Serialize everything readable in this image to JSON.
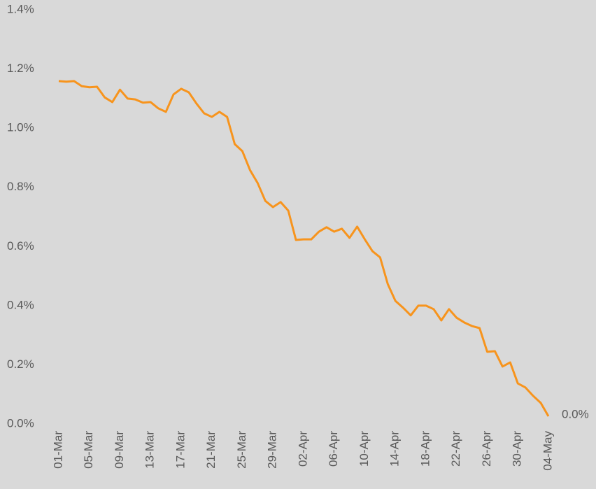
{
  "chart_data": {
    "type": "line",
    "categories": [
      "01-Mar",
      null,
      null,
      null,
      "05-Mar",
      null,
      null,
      null,
      "09-Mar",
      null,
      null,
      null,
      "13-Mar",
      null,
      null,
      null,
      "17-Mar",
      null,
      null,
      null,
      "21-Mar",
      null,
      null,
      null,
      "25-Mar",
      null,
      null,
      null,
      "29-Mar",
      null,
      null,
      null,
      "02-Apr",
      null,
      null,
      null,
      "06-Apr",
      null,
      null,
      null,
      "10-Apr",
      null,
      null,
      null,
      "14-Apr",
      null,
      null,
      null,
      "18-Apr",
      null,
      null,
      null,
      "22-Apr",
      null,
      null,
      null,
      "26-Apr",
      null,
      null,
      null,
      "30-Apr",
      null,
      null,
      null,
      "04-May"
    ],
    "series": [
      {
        "color": "#f7941d",
        "values": [
          1.159,
          1.157,
          1.159,
          1.142,
          1.138,
          1.14,
          1.104,
          1.088,
          1.13,
          1.1,
          1.097,
          1.086,
          1.088,
          1.067,
          1.055,
          1.114,
          1.133,
          1.121,
          1.083,
          1.05,
          1.038,
          1.055,
          1.038,
          0.946,
          0.922,
          0.858,
          0.814,
          0.754,
          0.733,
          0.75,
          0.721,
          0.622,
          0.624,
          0.624,
          0.65,
          0.665,
          0.65,
          0.66,
          0.629,
          0.667,
          0.624,
          0.584,
          0.563,
          0.473,
          0.416,
          0.393,
          0.367,
          0.4,
          0.4,
          0.388,
          0.35,
          0.388,
          0.359,
          0.343,
          0.331,
          0.324,
          0.244,
          0.246,
          0.194,
          0.208,
          0.137,
          0.123,
          0.095,
          0.071,
          0.026
        ],
        "value_labels": [
          null,
          null,
          null,
          null,
          null,
          null,
          null,
          null,
          null,
          null,
          null,
          null,
          null,
          null,
          null,
          null,
          null,
          null,
          null,
          null,
          null,
          null,
          null,
          null,
          null,
          null,
          null,
          null,
          null,
          null,
          null,
          null,
          null,
          null,
          null,
          null,
          null,
          null,
          null,
          null,
          null,
          null,
          null,
          null,
          null,
          null,
          null,
          null,
          null,
          null,
          null,
          null,
          null,
          null,
          null,
          null,
          null,
          null,
          null,
          null,
          null,
          null,
          null,
          null,
          "0.0%"
        ]
      }
    ],
    "ylim": [
      0,
      1.4
    ],
    "yticks": [
      {
        "value": 0,
        "label": "0.0%"
      },
      {
        "value": 0.2,
        "label": "0.2%"
      },
      {
        "value": 0.4,
        "label": "0.4%"
      },
      {
        "value": 0.6,
        "label": "0.6%"
      },
      {
        "value": 0.8,
        "label": "0.8%"
      },
      {
        "value": 1.0,
        "label": "1.0%"
      },
      {
        "value": 1.2,
        "label": "1.2%"
      },
      {
        "value": 1.4,
        "label": "1.4%"
      }
    ],
    "grid": false
  }
}
